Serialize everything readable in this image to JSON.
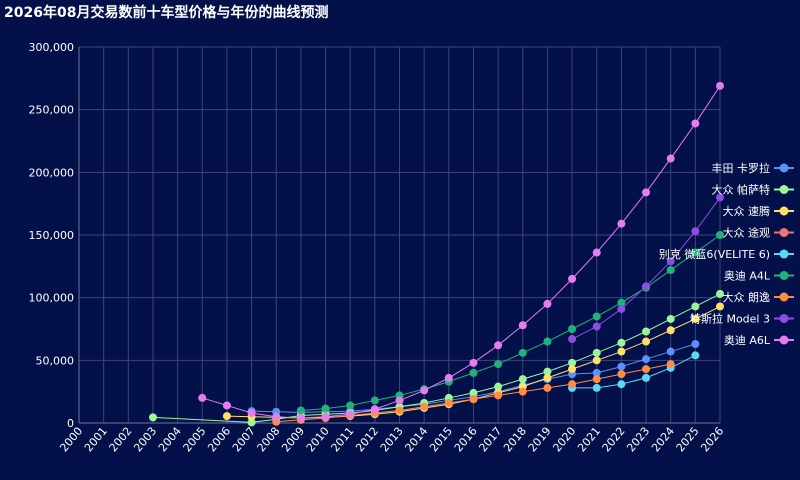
{
  "chart_data": {
    "type": "line",
    "title": "2026年08月交易数前十车型价格与年份的曲线预测",
    "xlabel": "",
    "ylabel": "",
    "x": [
      "2000",
      "2001",
      "2002",
      "2003",
      "2004",
      "2005",
      "2006",
      "2007",
      "2008",
      "2009",
      "2010",
      "2011",
      "2012",
      "2013",
      "2014",
      "2015",
      "2016",
      "2017",
      "2018",
      "2019",
      "2020",
      "2021",
      "2022",
      "2023",
      "2024",
      "2025",
      "2026"
    ],
    "ylim": [
      0,
      300000
    ],
    "yticks": [
      0,
      50000,
      100000,
      150000,
      200000,
      250000,
      300000
    ],
    "ytick_labels": [
      "0",
      "50,000",
      "100,000",
      "150,000",
      "200,000",
      "250,000",
      "300,000"
    ],
    "grid": true,
    "legend_position": "right",
    "series": [
      {
        "name": "丰田 卡罗拉",
        "color": "#5b8ff9",
        "values": [
          null,
          null,
          null,
          null,
          null,
          null,
          null,
          9500,
          9000,
          8500,
          9000,
          9500,
          11000,
          13000,
          15000,
          18000,
          21000,
          25000,
          30000,
          35000,
          39000,
          40000,
          45000,
          51000,
          57000,
          63000,
          null
        ]
      },
      {
        "name": "大众 帕萨特",
        "color": "#9bf59b",
        "values": [
          null,
          null,
          null,
          4500,
          null,
          null,
          null,
          500,
          3000,
          6000,
          7000,
          8000,
          10000,
          13000,
          16000,
          20000,
          24000,
          29000,
          35000,
          41000,
          48000,
          56000,
          64000,
          73000,
          83000,
          93000,
          103000
        ]
      },
      {
        "name": "大众 速腾",
        "color": "#ffe066",
        "values": [
          null,
          null,
          null,
          null,
          null,
          null,
          5500,
          5000,
          4500,
          4000,
          4500,
          5500,
          7000,
          9000,
          12000,
          15000,
          19000,
          24000,
          29000,
          36000,
          43000,
          50000,
          57000,
          65000,
          74000,
          83000,
          93000
        ]
      },
      {
        "name": "大众 途观",
        "color": "#f07272",
        "values": [
          null,
          null,
          null,
          null,
          null,
          null,
          null,
          null,
          null,
          null,
          null,
          null,
          null,
          null,
          null,
          null,
          null,
          null,
          null,
          null,
          null,
          null,
          null,
          null,
          null,
          null,
          null
        ]
      },
      {
        "name": "别克 微蓝6(VELITE 6)",
        "color": "#5ad8f5",
        "values": [
          null,
          null,
          null,
          null,
          null,
          null,
          null,
          null,
          null,
          null,
          null,
          null,
          null,
          null,
          null,
          null,
          null,
          null,
          null,
          null,
          28000,
          28000,
          31000,
          36000,
          44000,
          54000,
          null
        ]
      },
      {
        "name": "奥迪 A4L",
        "color": "#1fb27a",
        "values": [
          null,
          null,
          null,
          null,
          null,
          null,
          null,
          null,
          null,
          10000,
          11500,
          14000,
          18000,
          22000,
          27000,
          33000,
          40000,
          47000,
          56000,
          65000,
          75000,
          85000,
          96000,
          108000,
          122000,
          136000,
          150000
        ]
      },
      {
        "name": "大众 朗逸",
        "color": "#ff8c42",
        "values": [
          null,
          null,
          null,
          null,
          null,
          null,
          null,
          null,
          1000,
          2500,
          4000,
          6000,
          8000,
          10000,
          13000,
          16000,
          19000,
          22000,
          25000,
          28000,
          31000,
          35000,
          39000,
          43000,
          47000,
          null,
          null
        ]
      },
      {
        "name": "特斯拉 Model 3",
        "color": "#8a4fe0",
        "values": [
          null,
          null,
          null,
          null,
          null,
          null,
          null,
          null,
          null,
          null,
          null,
          null,
          null,
          null,
          null,
          null,
          null,
          null,
          null,
          null,
          67000,
          77000,
          91000,
          109000,
          129000,
          153000,
          180000
        ]
      },
      {
        "name": "奥迪 A6L",
        "color": "#e77cf0",
        "values": [
          null,
          null,
          null,
          null,
          null,
          20000,
          14000,
          8000,
          5000,
          4000,
          5000,
          7000,
          11000,
          18000,
          26000,
          36000,
          48000,
          62000,
          78000,
          95000,
          115000,
          136000,
          159000,
          184000,
          211000,
          239000,
          269000
        ]
      }
    ]
  }
}
